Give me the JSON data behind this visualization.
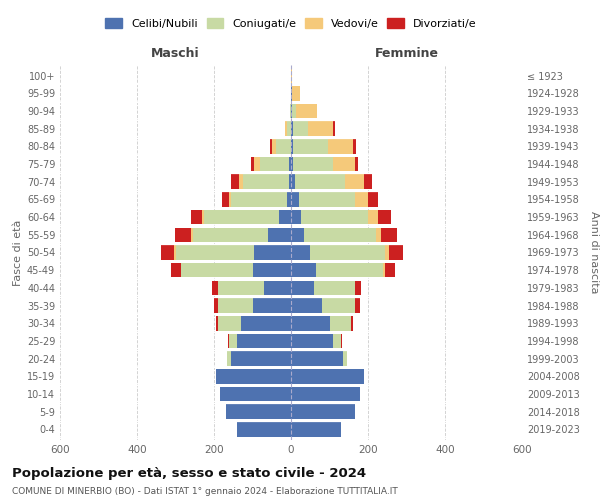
{
  "age_groups": [
    "0-4",
    "5-9",
    "10-14",
    "15-19",
    "20-24",
    "25-29",
    "30-34",
    "35-39",
    "40-44",
    "45-49",
    "50-54",
    "55-59",
    "60-64",
    "65-69",
    "70-74",
    "75-79",
    "80-84",
    "85-89",
    "90-94",
    "95-99",
    "100+"
  ],
  "birth_years": [
    "2019-2023",
    "2014-2018",
    "2009-2013",
    "2004-2008",
    "1999-2003",
    "1994-1998",
    "1989-1993",
    "1984-1988",
    "1979-1983",
    "1974-1978",
    "1969-1973",
    "1964-1968",
    "1959-1963",
    "1954-1958",
    "1949-1953",
    "1944-1948",
    "1939-1943",
    "1934-1938",
    "1929-1933",
    "1924-1928",
    "≤ 1923"
  ],
  "males": {
    "celibe": [
      140,
      170,
      185,
      195,
      155,
      140,
      130,
      100,
      70,
      100,
      95,
      60,
      30,
      10,
      5,
      5,
      0,
      0,
      0,
      0,
      0
    ],
    "coniugato": [
      0,
      0,
      0,
      0,
      10,
      20,
      60,
      90,
      120,
      185,
      205,
      195,
      195,
      145,
      120,
      75,
      40,
      10,
      3,
      0,
      0
    ],
    "vedovo": [
      0,
      0,
      0,
      0,
      0,
      0,
      0,
      0,
      0,
      2,
      3,
      5,
      5,
      5,
      10,
      15,
      10,
      5,
      0,
      0,
      0
    ],
    "divorziato": [
      0,
      0,
      0,
      0,
      0,
      3,
      5,
      10,
      15,
      25,
      35,
      40,
      30,
      20,
      20,
      8,
      5,
      0,
      0,
      0,
      0
    ]
  },
  "females": {
    "nubile": [
      130,
      165,
      180,
      190,
      135,
      110,
      100,
      80,
      60,
      65,
      50,
      35,
      25,
      20,
      10,
      5,
      5,
      5,
      3,
      3,
      0
    ],
    "coniugata": [
      0,
      0,
      0,
      0,
      10,
      20,
      55,
      85,
      105,
      175,
      195,
      185,
      175,
      145,
      130,
      105,
      90,
      40,
      10,
      0,
      0
    ],
    "vedova": [
      0,
      0,
      0,
      0,
      0,
      0,
      2,
      2,
      2,
      5,
      10,
      15,
      25,
      35,
      50,
      55,
      65,
      65,
      55,
      20,
      3
    ],
    "divorziata": [
      0,
      0,
      0,
      0,
      0,
      3,
      5,
      12,
      15,
      25,
      35,
      40,
      35,
      25,
      20,
      10,
      10,
      5,
      0,
      0,
      0
    ]
  },
  "colors": {
    "celibe": "#4e72b0",
    "coniugato": "#c8daa4",
    "vedovo": "#f5c97a",
    "divorziato": "#cc2020"
  },
  "legend_labels": [
    "Celibi/Nubili",
    "Coniugati/e",
    "Vedovi/e",
    "Divorziati/e"
  ],
  "xlim": 600,
  "title": "Popolazione per età, sesso e stato civile - 2024",
  "subtitle": "COMUNE DI MINERBIO (BO) - Dati ISTAT 1° gennaio 2024 - Elaborazione TUTTITALIA.IT",
  "xlabel_left": "Maschi",
  "xlabel_right": "Femmine",
  "ylabel_left": "Fasce di età",
  "ylabel_right": "Anni di nascita",
  "background_color": "#ffffff",
  "grid_color": "#cccccc"
}
